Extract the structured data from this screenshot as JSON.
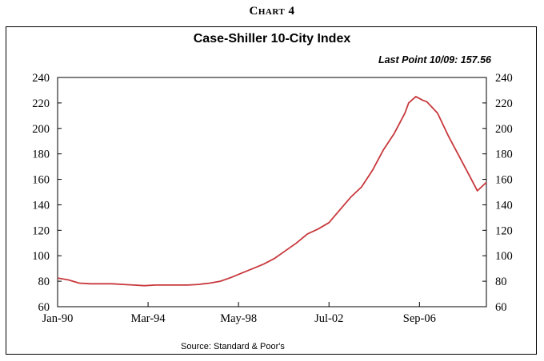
{
  "header": {
    "chart_number": "Chart 4"
  },
  "footer": {
    "source": "Source:  Standard & Poor's"
  },
  "chart_data": {
    "type": "line",
    "title": "Case-Shiller 10-City Index",
    "annotation": "Last Point 10/09: 157.56",
    "xlabel": "",
    "ylabel": "",
    "x_ticks": [
      "Jan-90",
      "Mar-94",
      "May-98",
      "Jul-02",
      "Sep-06"
    ],
    "x_tick_positions": [
      "1990-01",
      "1994-03",
      "1998-05",
      "2002-07",
      "2006-09"
    ],
    "y_ticks": [
      60,
      80,
      100,
      120,
      140,
      160,
      180,
      200,
      220,
      240
    ],
    "ylim": [
      60,
      240
    ],
    "xlim": [
      "1990-01",
      "2009-10"
    ],
    "grid": false,
    "dual_axis_labels": true,
    "series_color": "#c8383c",
    "series": [
      {
        "name": "",
        "x": [
          "1990-01",
          "1990-07",
          "1991-01",
          "1991-07",
          "1992-01",
          "1992-07",
          "1993-01",
          "1993-07",
          "1994-01",
          "1994-07",
          "1995-01",
          "1995-07",
          "1996-01",
          "1996-07",
          "1997-01",
          "1997-07",
          "1998-01",
          "1998-07",
          "1999-01",
          "1999-07",
          "2000-01",
          "2000-07",
          "2001-01",
          "2001-07",
          "2002-01",
          "2002-07",
          "2003-01",
          "2003-07",
          "2004-01",
          "2004-07",
          "2005-01",
          "2005-07",
          "2006-01",
          "2006-03",
          "2006-07",
          "2006-11",
          "2007-01",
          "2007-07",
          "2008-01",
          "2008-07",
          "2009-01",
          "2009-05",
          "2009-10"
        ],
        "values": [
          82.5,
          81,
          78.5,
          78,
          78,
          78,
          77.5,
          77,
          76.5,
          77,
          77,
          77,
          77,
          77.5,
          78.5,
          80,
          83,
          86.5,
          90,
          93.5,
          98,
          104,
          110,
          117,
          121,
          126,
          136,
          146,
          154,
          167,
          183,
          196,
          212,
          220,
          225,
          222,
          221,
          212,
          194,
          178,
          162,
          151,
          157.56
        ]
      }
    ]
  }
}
